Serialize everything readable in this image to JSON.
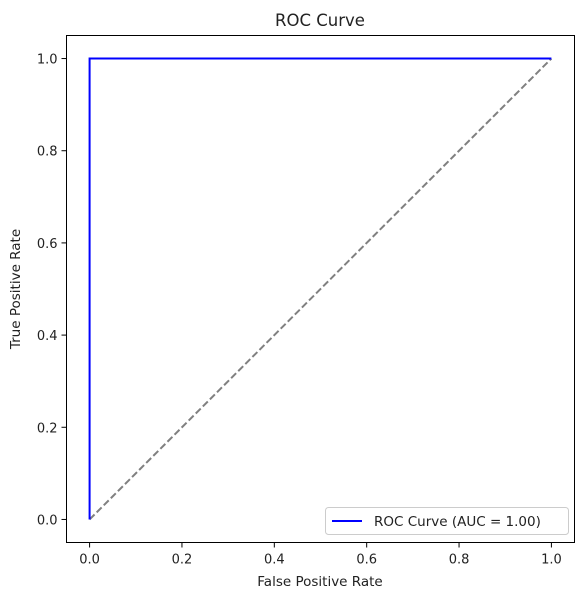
{
  "chart_data": {
    "type": "line",
    "title": "ROC Curve",
    "xlabel": "False Positive Rate",
    "ylabel": "True Positive Rate",
    "xlim": [
      -0.05,
      1.05
    ],
    "ylim": [
      -0.05,
      1.05
    ],
    "xticks": [
      0.0,
      0.2,
      0.4,
      0.6,
      0.8,
      1.0
    ],
    "yticks": [
      0.0,
      0.2,
      0.4,
      0.6,
      0.8,
      1.0
    ],
    "xtick_labels": [
      "0.0",
      "0.2",
      "0.4",
      "0.6",
      "0.8",
      "1.0"
    ],
    "ytick_labels": [
      "0.0",
      "0.2",
      "0.4",
      "0.6",
      "0.8",
      "1.0"
    ],
    "grid": false,
    "legend_position": "lower-right",
    "series": [
      {
        "name": "ROC Curve (AUC = 1.00)",
        "color": "#0000ff",
        "style": "solid",
        "x": [
          0.0,
          0.0,
          1.0
        ],
        "y": [
          0.0,
          1.0,
          1.0
        ]
      },
      {
        "color": "#808080",
        "style": "dashed",
        "x": [
          0.0,
          1.0
        ],
        "y": [
          0.0,
          1.0
        ]
      }
    ]
  }
}
